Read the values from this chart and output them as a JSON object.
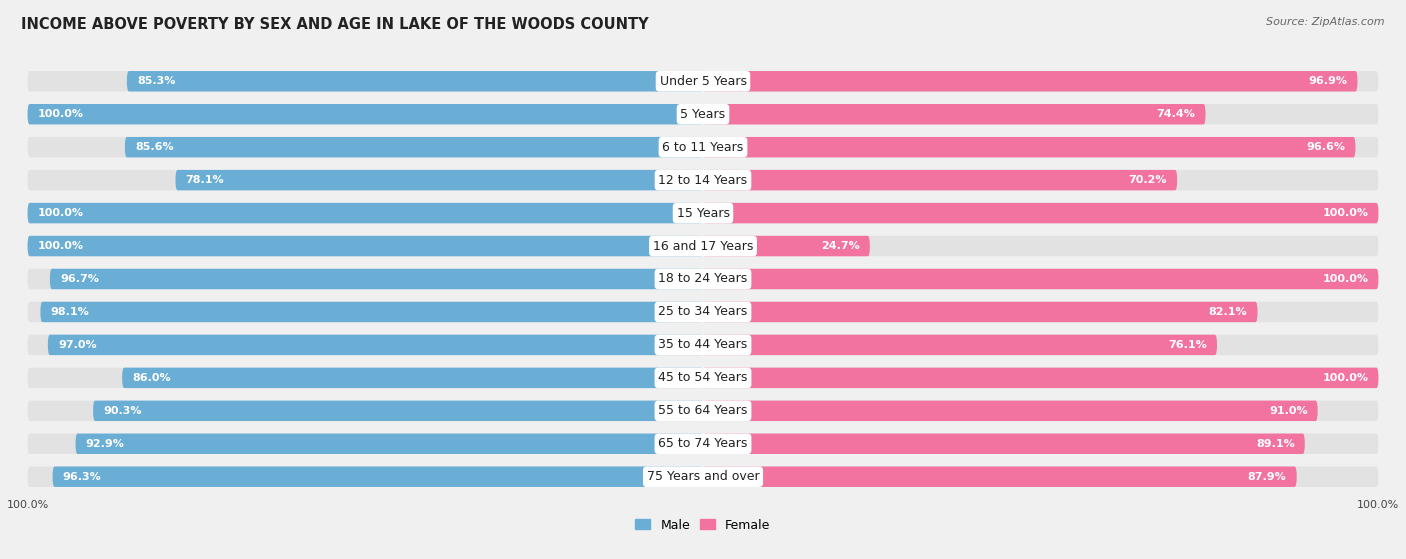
{
  "title": "INCOME ABOVE POVERTY BY SEX AND AGE IN LAKE OF THE WOODS COUNTY",
  "source": "Source: ZipAtlas.com",
  "categories": [
    "Under 5 Years",
    "5 Years",
    "6 to 11 Years",
    "12 to 14 Years",
    "15 Years",
    "16 and 17 Years",
    "18 to 24 Years",
    "25 to 34 Years",
    "35 to 44 Years",
    "45 to 54 Years",
    "55 to 64 Years",
    "65 to 74 Years",
    "75 Years and over"
  ],
  "male_values": [
    85.3,
    100.0,
    85.6,
    78.1,
    100.0,
    100.0,
    96.7,
    98.1,
    97.0,
    86.0,
    90.3,
    92.9,
    96.3
  ],
  "female_values": [
    96.9,
    74.4,
    96.6,
    70.2,
    100.0,
    24.7,
    100.0,
    82.1,
    76.1,
    100.0,
    91.0,
    89.1,
    87.9
  ],
  "male_color": "#6aaed6",
  "female_color": "#f272a0",
  "male_label": "Male",
  "female_label": "Female",
  "background_color": "#f0f0f0",
  "bar_bg_color": "#e2e2e2",
  "max_value": 100.0,
  "title_fontsize": 10.5,
  "label_fontsize": 9,
  "value_fontsize": 8,
  "legend_fontsize": 9,
  "source_fontsize": 8,
  "bottom_label": "100.0%"
}
